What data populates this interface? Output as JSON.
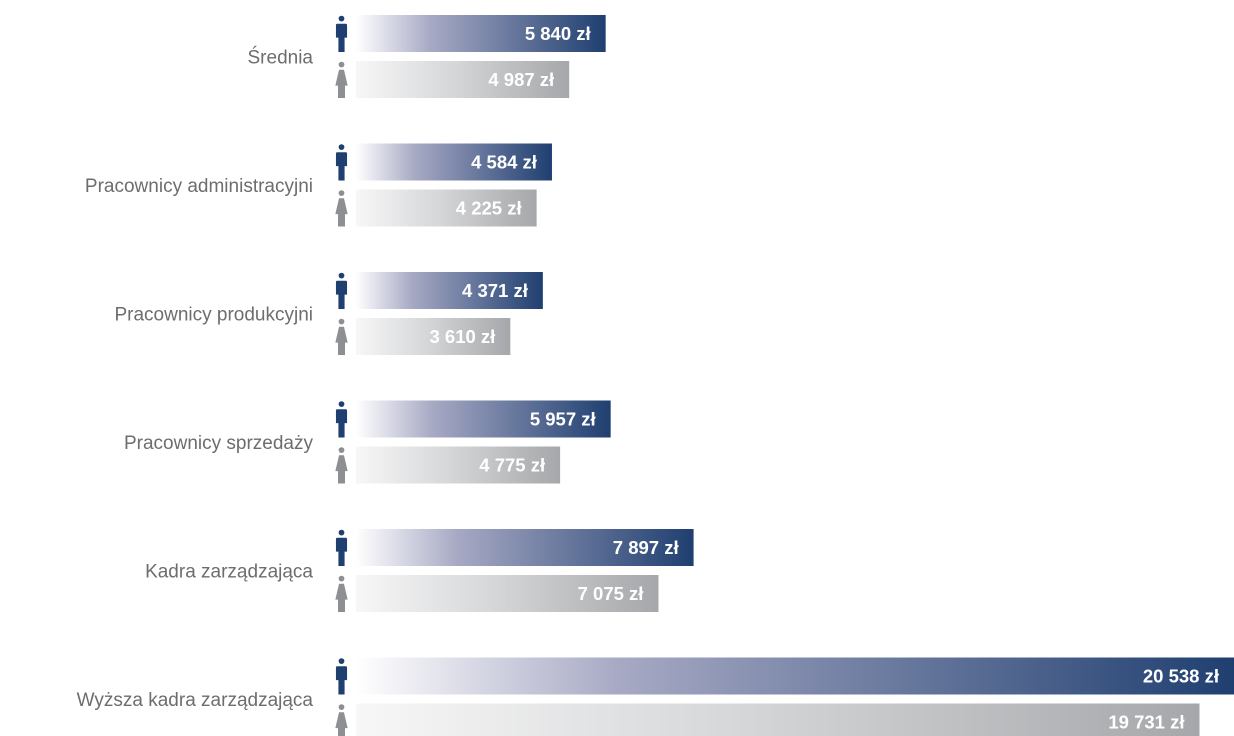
{
  "chart_data": {
    "type": "bar",
    "orientation": "horizontal",
    "categories": [
      "Średnia",
      "Pracownicy administracyjni",
      "Pracownicy produkcyjni",
      "Pracownicy sprzedaży",
      "Kadra zarządzająca",
      "Wyższa kadra zarządzająca"
    ],
    "series": [
      {
        "icon": "male-figure-icon",
        "color": "#1f3f70",
        "values": [
          5840,
          4584,
          4371,
          5957,
          7897,
          20538
        ],
        "labels": [
          "5 840 zł",
          "4 584 zł",
          "4 371 zł",
          "5 957 zł",
          "7 897 zł",
          "20 538 zł"
        ]
      },
      {
        "icon": "female-figure-icon",
        "color": "#a6a7aa",
        "values": [
          4987,
          4225,
          3610,
          4775,
          7075,
          19731
        ],
        "labels": [
          "4 987 zł",
          "4 225 zł",
          "3 610 zł",
          "4 775 zł",
          "7 075 zł",
          "19 731 zł"
        ]
      }
    ],
    "xlim": [
      0,
      20538
    ],
    "grid": false,
    "legend": "none"
  }
}
